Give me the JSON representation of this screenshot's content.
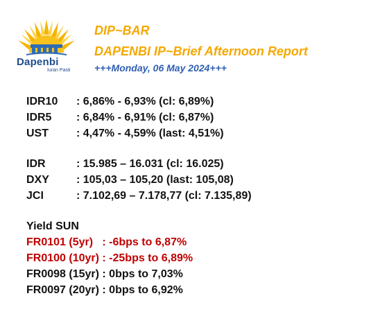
{
  "logo": {
    "name": "Dapenbi",
    "tagline": "Iuran Pasti",
    "colors": {
      "sun": "#f5b400",
      "blue": "#2f6db5",
      "navy": "#1f4b8c"
    }
  },
  "header": {
    "title": "DIP~BAR",
    "subtitle": "DAPENBI IP~Brief Afternoon Report",
    "date_line": "+++Monday, 06 May 2024+++",
    "colors": {
      "title": "#f5a800",
      "date": "#2f5fb3"
    }
  },
  "rates": [
    {
      "label": "IDR10",
      "value": ": 6,86% - 6,93% (cl: 6,89%)"
    },
    {
      "label": "IDR5",
      "value": ": 6,84% - 6,91% (cl: 6,87%)"
    },
    {
      "label": "UST",
      "value": ": 4,47% - 4,59% (last: 4,51%)"
    }
  ],
  "markets": [
    {
      "label": "IDR",
      "value": ": 15.985 – 16.031 (cl: 16.025)"
    },
    {
      "label": "DXY",
      "value": ": 105,03 – 105,20 (last: 105,08)"
    },
    {
      "label": "JCI",
      "value": ": 7.102,69 – 7.178,77 (cl: 7.135,89)"
    }
  ],
  "yield_sun": {
    "title": "Yield SUN",
    "items": [
      {
        "text": "FR0101 (5yr)   : -6bps to 6,87%",
        "color": "#c00000"
      },
      {
        "text": "FR0100 (10yr) : -25bps to 6,89%",
        "color": "#c00000"
      },
      {
        "text": "FR0098 (15yr) : 0bps to 7,03%",
        "color": "#111111"
      },
      {
        "text": "FR0097 (20yr) : 0bps to 6,92%",
        "color": "#111111"
      }
    ]
  }
}
